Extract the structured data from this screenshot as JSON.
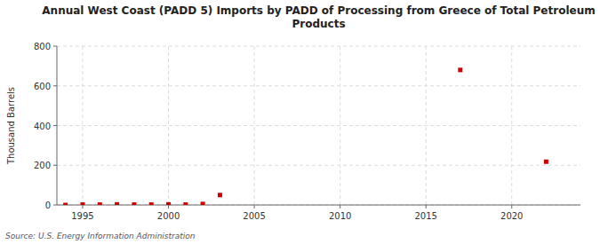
{
  "chart_data": {
    "type": "scatter",
    "title": "Annual West Coast (PADD 5) Imports by PADD of Processing from Greece of Total Petroleum\nProducts",
    "y_label": "Thousand Barrels",
    "source": "Source: U.S. Energy Information Administration",
    "x": [
      1994,
      1995,
      1996,
      1997,
      1998,
      1999,
      2000,
      2001,
      2002,
      2003,
      2017,
      2022
    ],
    "values": [
      0,
      2,
      2,
      3,
      2,
      2,
      3,
      2,
      5,
      50,
      680,
      218
    ],
    "color": "#cc0000",
    "marker": "square",
    "xlim": [
      1993.5,
      2024
    ],
    "ylim": [
      0,
      800
    ],
    "xticks": [
      1995,
      2000,
      2005,
      2010,
      2015,
      2020
    ],
    "yticks": [
      0,
      200,
      400,
      600,
      800
    ],
    "grid": true
  }
}
